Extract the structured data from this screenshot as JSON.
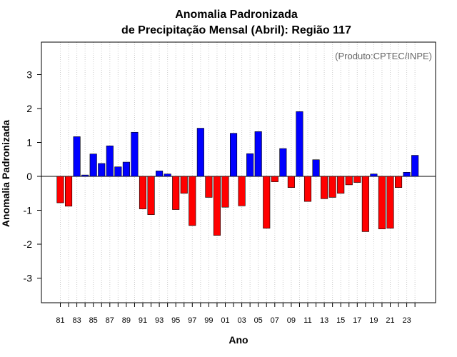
{
  "chart_data": {
    "type": "bar",
    "title_line1": "Anomalia Padronizada",
    "title_line2": "de Precipitação Mensal (Abril): Região 117",
    "xlabel": "Ano",
    "ylabel": "Anomalia Padronizada",
    "annotation": "(Produto:CPTEC/INPE)",
    "ylim": [
      -3.9,
      3.9
    ],
    "yticks": [
      -3,
      -2,
      -1,
      0,
      1,
      2,
      3
    ],
    "x": [
      "81",
      "82",
      "83",
      "84",
      "85",
      "86",
      "87",
      "88",
      "89",
      "90",
      "91",
      "92",
      "93",
      "94",
      "95",
      "96",
      "97",
      "98",
      "99",
      "00",
      "01",
      "02",
      "03",
      "04",
      "05",
      "06",
      "07",
      "08",
      "09",
      "10",
      "11",
      "12",
      "13",
      "14",
      "15",
      "16",
      "17",
      "18",
      "19",
      "20",
      "21",
      "22",
      "23",
      "24"
    ],
    "xtick_labels": [
      "81",
      "83",
      "85",
      "87",
      "89",
      "91",
      "93",
      "95",
      "97",
      "99",
      "01",
      "03",
      "05",
      "07",
      "09",
      "11",
      "13",
      "15",
      "17",
      "19",
      "21",
      "23"
    ],
    "values": [
      -0.78,
      -0.88,
      1.17,
      0.04,
      0.66,
      0.38,
      0.9,
      0.28,
      0.42,
      1.3,
      -0.96,
      -1.13,
      0.16,
      0.07,
      -0.98,
      -0.5,
      -1.45,
      1.42,
      -0.62,
      -1.74,
      -0.91,
      1.27,
      -0.87,
      0.67,
      1.32,
      -1.53,
      -0.16,
      0.82,
      -0.33,
      1.91,
      -0.74,
      0.49,
      -0.66,
      -0.62,
      -0.5,
      -0.25,
      -0.18,
      -1.63,
      0.07,
      -1.55,
      -1.53,
      -0.33,
      0.12,
      0.62
    ],
    "colors": {
      "positive": "#0000ff",
      "negative": "#ff0000",
      "grid": "#cccccc",
      "frame": "#000000"
    }
  }
}
